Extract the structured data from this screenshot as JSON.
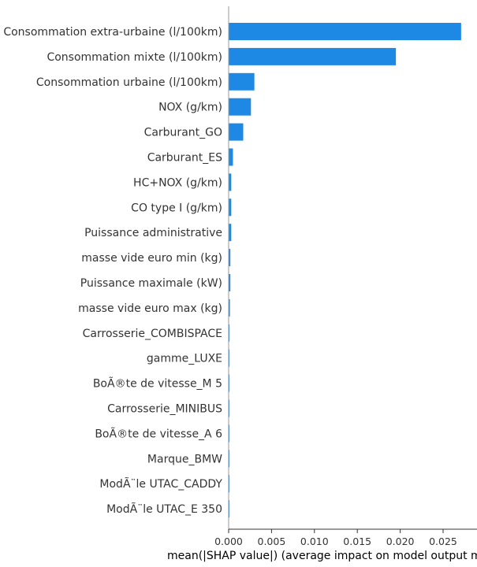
{
  "chart_data": {
    "type": "bar",
    "orientation": "horizontal",
    "categories": [
      "Consommation extra-urbaine (l/100km)",
      "Consommation mixte (l/100km)",
      "Consommation urbaine (l/100km)",
      "NOX (g/km)",
      "Carburant_GO",
      "Carburant_ES",
      "HC+NOX (g/km)",
      "CO type I (g/km)",
      "Puissance administrative",
      "masse vide euro min (kg)",
      "Puissance maximale (kW)",
      "masse vide euro max (kg)",
      "Carrosserie_COMBISPACE",
      "gamme_LUXE",
      "BoÃ®te de vitesse_M 5",
      "Carrosserie_MINIBUS",
      "BoÃ®te de vitesse_A 6",
      "Marque_BMW",
      "ModÃ¨le UTAC_CADDY",
      "ModÃ¨le UTAC_E 350"
    ],
    "values": [
      0.0271,
      0.0195,
      0.003,
      0.0026,
      0.0017,
      0.0005,
      0.0003,
      0.0003,
      0.0003,
      0.0002,
      0.0002,
      0.00015,
      0.0001,
      5e-05,
      4e-05,
      4e-05,
      3e-05,
      3e-05,
      3e-05,
      2e-05
    ],
    "xlabel": "mean(|SHAP value|) (average impact on model output magnitude)",
    "xticks": [
      "0.000",
      "0.005",
      "0.010",
      "0.015",
      "0.020",
      "0.025"
    ],
    "xtick_values": [
      0,
      0.005,
      0.01,
      0.015,
      0.02,
      0.025
    ],
    "xlim": [
      0,
      0.0278
    ],
    "bar_color": "#1e88e5",
    "grid": false
  }
}
